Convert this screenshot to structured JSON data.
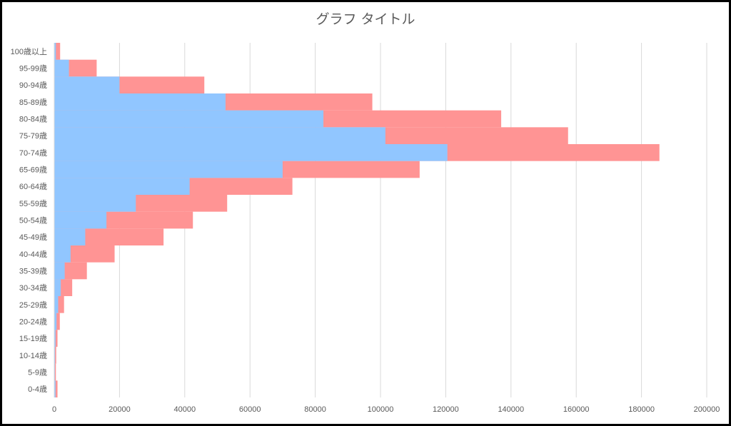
{
  "chart_data": {
    "type": "bar",
    "orientation": "horizontal",
    "stacked": false,
    "overlap": true,
    "title": "グラフ タイトル",
    "xlabel": "",
    "ylabel": "",
    "xlim": [
      0,
      200000
    ],
    "xticks": [
      0,
      20000,
      40000,
      60000,
      80000,
      100000,
      120000,
      140000,
      160000,
      180000,
      200000
    ],
    "grid": true,
    "legend": "none",
    "categories": [
      "0-4歳",
      "5-9歳",
      "10-14歳",
      "15-19歳",
      "20-24歳",
      "25-29歳",
      "30-34歳",
      "35-39歳",
      "40-44歳",
      "45-49歳",
      "50-54歳",
      "55-59歳",
      "60-64歳",
      "65-69歳",
      "70-74歳",
      "75-79歳",
      "80-84歳",
      "85-89歳",
      "90-94歳",
      "95-99歳",
      "100歳以上"
    ],
    "series": [
      {
        "color": "#ff9494",
        "values": [
          1000,
          500,
          600,
          1000,
          1700,
          3000,
          5500,
          10000,
          18500,
          33500,
          42500,
          53000,
          73000,
          112000,
          185500,
          157500,
          137000,
          97500,
          46000,
          13000,
          1800
        ]
      },
      {
        "color": "#91c6ff",
        "values": [
          400,
          200,
          250,
          400,
          700,
          1200,
          2000,
          3200,
          5000,
          9500,
          16000,
          25000,
          41500,
          70000,
          120500,
          101500,
          82500,
          52500,
          20000,
          4500,
          500
        ]
      }
    ]
  }
}
